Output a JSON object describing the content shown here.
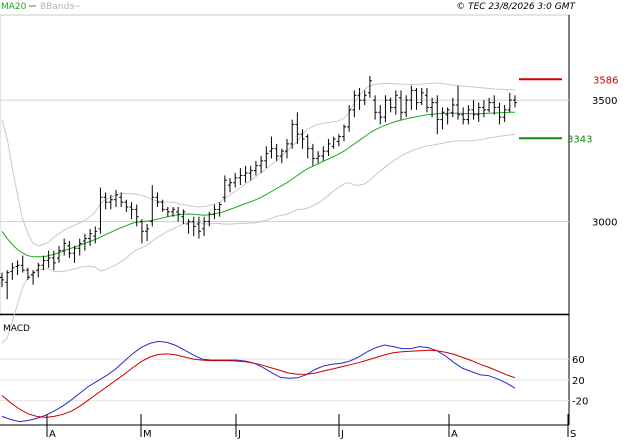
{
  "header": {
    "legend_ma": "MA20",
    "legend_bands": "BBands",
    "copyright": "© TEC 23/8/2026 3:0 GMT"
  },
  "macd_panel": {
    "label": "MACD"
  },
  "colors": {
    "ma": "#1aa81a",
    "bands": "#c8c8c8",
    "bars": "#000000",
    "resistance": "#cc0000",
    "support": "#118811",
    "macd": "#2a2acc",
    "signal": "#cc0000",
    "grid": "#cfcfcf",
    "frame": "#000000"
  },
  "chart_data": [
    {
      "type": "ohlc",
      "y_ticks": [
        3000,
        3500
      ],
      "y_tick_labels": [
        "3000",
        "3500"
      ],
      "ylim": [
        2640,
        3830
      ],
      "x_tick_labels": [
        "A",
        "M",
        "J",
        "J",
        "A",
        "S"
      ],
      "legend": [
        "MA20",
        "BBands"
      ],
      "levels": [
        {
          "name": "resistance",
          "value": 3586,
          "label": "3586"
        },
        {
          "name": "support",
          "value": 3343,
          "label": "3343"
        }
      ],
      "ohlc": [
        [
          2770,
          2790,
          2730,
          2760
        ],
        [
          2750,
          2800,
          2680,
          2790
        ],
        [
          2795,
          2830,
          2760,
          2810
        ],
        [
          2815,
          2840,
          2780,
          2820
        ],
        [
          2820,
          2860,
          2790,
          2800
        ],
        [
          2800,
          2810,
          2760,
          2770
        ],
        [
          2780,
          2800,
          2740,
          2790
        ],
        [
          2800,
          2830,
          2770,
          2820
        ],
        [
          2820,
          2860,
          2800,
          2840
        ],
        [
          2840,
          2880,
          2810,
          2850
        ],
        [
          2850,
          2880,
          2800,
          2830
        ],
        [
          2850,
          2900,
          2830,
          2880
        ],
        [
          2880,
          2930,
          2860,
          2910
        ],
        [
          2900,
          2920,
          2850,
          2870
        ],
        [
          2870,
          2900,
          2830,
          2890
        ],
        [
          2890,
          2930,
          2860,
          2910
        ],
        [
          2920,
          2950,
          2880,
          2930
        ],
        [
          2930,
          2970,
          2900,
          2950
        ],
        [
          2940,
          2980,
          2910,
          2960
        ],
        [
          2970,
          3140,
          2950,
          3100
        ],
        [
          3100,
          3120,
          3050,
          3080
        ],
        [
          3080,
          3110,
          3050,
          3090
        ],
        [
          3090,
          3130,
          3060,
          3110
        ],
        [
          3100,
          3120,
          3060,
          3080
        ],
        [
          3080,
          3090,
          3040,
          3060
        ],
        [
          3060,
          3080,
          3010,
          3050
        ],
        [
          3050,
          3070,
          2980,
          3020
        ],
        [
          3000,
          3010,
          2910,
          2960
        ],
        [
          2960,
          2990,
          2920,
          2970
        ],
        [
          3000,
          3150,
          2980,
          3100
        ],
        [
          3100,
          3120,
          3060,
          3080
        ],
        [
          3080,
          3090,
          3040,
          3050
        ],
        [
          3050,
          3060,
          3020,
          3040
        ],
        [
          3040,
          3060,
          3020,
          3050
        ],
        [
          3040,
          3060,
          3000,
          3030
        ],
        [
          3020,
          3050,
          2990,
          3040
        ],
        [
          2990,
          3010,
          2950,
          3000
        ],
        [
          3000,
          3020,
          2940,
          2980
        ],
        [
          2990,
          3020,
          2930,
          2960
        ],
        [
          2970,
          3020,
          2940,
          3000
        ],
        [
          3000,
          3040,
          2980,
          3030
        ],
        [
          3030,
          3070,
          3010,
          3050
        ],
        [
          3050,
          3080,
          3020,
          3070
        ],
        [
          3100,
          3190,
          3080,
          3170
        ],
        [
          3150,
          3180,
          3120,
          3160
        ],
        [
          3160,
          3200,
          3140,
          3180
        ],
        [
          3180,
          3220,
          3150,
          3190
        ],
        [
          3190,
          3230,
          3160,
          3200
        ],
        [
          3200,
          3230,
          3170,
          3210
        ],
        [
          3210,
          3250,
          3190,
          3230
        ],
        [
          3230,
          3270,
          3200,
          3250
        ],
        [
          3250,
          3310,
          3220,
          3280
        ],
        [
          3290,
          3350,
          3260,
          3300
        ],
        [
          3300,
          3320,
          3250,
          3270
        ],
        [
          3270,
          3300,
          3240,
          3290
        ],
        [
          3290,
          3340,
          3260,
          3320
        ],
        [
          3320,
          3420,
          3300,
          3400
        ],
        [
          3400,
          3450,
          3320,
          3360
        ],
        [
          3360,
          3380,
          3300,
          3340
        ],
        [
          3350,
          3360,
          3260,
          3300
        ],
        [
          3300,
          3320,
          3230,
          3260
        ],
        [
          3260,
          3290,
          3240,
          3270
        ],
        [
          3270,
          3310,
          3250,
          3290
        ],
        [
          3290,
          3340,
          3270,
          3320
        ],
        [
          3310,
          3350,
          3300,
          3340
        ],
        [
          3330,
          3360,
          3310,
          3350
        ],
        [
          3350,
          3400,
          3330,
          3390
        ],
        [
          3390,
          3480,
          3370,
          3460
        ],
        [
          3460,
          3540,
          3430,
          3520
        ],
        [
          3520,
          3550,
          3460,
          3500
        ],
        [
          3500,
          3540,
          3480,
          3520
        ],
        [
          3530,
          3600,
          3510,
          3580
        ],
        [
          3500,
          3520,
          3420,
          3450
        ],
        [
          3450,
          3480,
          3400,
          3430
        ],
        [
          3430,
          3520,
          3410,
          3500
        ],
        [
          3500,
          3510,
          3450,
          3470
        ],
        [
          3470,
          3540,
          3440,
          3520
        ],
        [
          3510,
          3540,
          3420,
          3450
        ],
        [
          3450,
          3520,
          3430,
          3500
        ],
        [
          3500,
          3560,
          3460,
          3540
        ],
        [
          3540,
          3550,
          3460,
          3490
        ],
        [
          3490,
          3550,
          3480,
          3530
        ],
        [
          3520,
          3550,
          3450,
          3470
        ],
        [
          3470,
          3510,
          3430,
          3490
        ],
        [
          3490,
          3520,
          3360,
          3420
        ],
        [
          3420,
          3470,
          3380,
          3450
        ],
        [
          3440,
          3470,
          3400,
          3460
        ],
        [
          3450,
          3510,
          3430,
          3480
        ],
        [
          3480,
          3560,
          3420,
          3440
        ],
        [
          3440,
          3470,
          3400,
          3420
        ],
        [
          3420,
          3480,
          3400,
          3460
        ],
        [
          3460,
          3500,
          3420,
          3440
        ],
        [
          3440,
          3490,
          3410,
          3470
        ],
        [
          3470,
          3500,
          3430,
          3460
        ],
        [
          3460,
          3510,
          3450,
          3490
        ],
        [
          3490,
          3520,
          3440,
          3470
        ],
        [
          3470,
          3490,
          3400,
          3430
        ],
        [
          3430,
          3480,
          3410,
          3460
        ],
        [
          3460,
          3530,
          3450,
          3500
        ],
        [
          3500,
          3520,
          3470,
          3490
        ]
      ],
      "ma20": [
        2960,
        2930,
        2905,
        2885,
        2870,
        2860,
        2855,
        2855,
        2855,
        2860,
        2865,
        2872,
        2880,
        2888,
        2895,
        2903,
        2910,
        2918,
        2926,
        2936,
        2946,
        2956,
        2966,
        2975,
        2983,
        2992,
        2998,
        3000,
        3002,
        3005,
        3010,
        3015,
        3020,
        3025,
        3028,
        3030,
        3031,
        3030,
        3028,
        3026,
        3028,
        3032,
        3036,
        3042,
        3050,
        3058,
        3066,
        3074,
        3082,
        3090,
        3100,
        3112,
        3124,
        3136,
        3148,
        3160,
        3175,
        3190,
        3205,
        3218,
        3228,
        3238,
        3248,
        3258,
        3268,
        3278,
        3290,
        3305,
        3320,
        3335,
        3350,
        3365,
        3378,
        3388,
        3397,
        3405,
        3412,
        3418,
        3423,
        3428,
        3432,
        3436,
        3440,
        3442,
        3444,
        3445,
        3446,
        3446,
        3446,
        3445,
        3444,
        3444,
        3444,
        3445,
        3446,
        3447,
        3448,
        3449,
        3450,
        3450
      ],
      "bb_upper": [
        3420,
        3340,
        3220,
        3110,
        3010,
        2950,
        2910,
        2900,
        2905,
        2915,
        2935,
        2950,
        2965,
        2975,
        2985,
        2995,
        3005,
        3020,
        3040,
        3075,
        3090,
        3100,
        3110,
        3115,
        3115,
        3115,
        3112,
        3108,
        3100,
        3090,
        3085,
        3082,
        3080,
        3080,
        3075,
        3070,
        3066,
        3062,
        3060,
        3062,
        3066,
        3072,
        3080,
        3095,
        3110,
        3125,
        3140,
        3155,
        3170,
        3185,
        3200,
        3218,
        3235,
        3250,
        3270,
        3290,
        3310,
        3330,
        3360,
        3380,
        3392,
        3400,
        3405,
        3408,
        3410,
        3415,
        3425,
        3450,
        3490,
        3520,
        3545,
        3560,
        3565,
        3568,
        3568,
        3568,
        3568,
        3566,
        3565,
        3565,
        3565,
        3566,
        3568,
        3570,
        3570,
        3568,
        3565,
        3562,
        3560,
        3558,
        3556,
        3554,
        3552,
        3550,
        3548,
        3546,
        3545,
        3544,
        3543,
        3542
      ],
      "bb_lower": [
        2500,
        2520,
        2590,
        2660,
        2730,
        2770,
        2790,
        2800,
        2805,
        2805,
        2795,
        2794,
        2795,
        2801,
        2805,
        2811,
        2815,
        2816,
        2812,
        2797,
        2802,
        2812,
        2822,
        2835,
        2851,
        2869,
        2884,
        2892,
        2904,
        2920,
        2935,
        2948,
        2960,
        2970,
        2981,
        2990,
        2996,
        2998,
        2996,
        2990,
        2990,
        2992,
        2992,
        2989,
        2990,
        2991,
        2992,
        2993,
        2994,
        2995,
        3000,
        3006,
        3013,
        3022,
        3026,
        3030,
        3040,
        3050,
        3050,
        3056,
        3064,
        3076,
        3091,
        3108,
        3126,
        3141,
        3155,
        3160,
        3150,
        3150,
        3155,
        3170,
        3191,
        3208,
        3226,
        3242,
        3256,
        3270,
        3281,
        3291,
        3299,
        3306,
        3312,
        3314,
        3318,
        3322,
        3327,
        3330,
        3332,
        3332,
        3332,
        3334,
        3336,
        3340,
        3344,
        3348,
        3351,
        3354,
        3357,
        3358
      ]
    },
    {
      "type": "line",
      "title": "MACD",
      "y_ticks": [
        60,
        20,
        -20
      ],
      "y_tick_labels": [
        "60",
        "20",
        "-20"
      ],
      "ylim": [
        -57,
        135
      ],
      "series": [
        {
          "values": [
            -50,
            -56,
            -60,
            -58,
            -54,
            -48,
            -40,
            -30,
            -18,
            -5,
            8,
            18,
            28,
            40,
            55,
            70,
            82,
            90,
            94,
            92,
            86,
            77,
            68,
            60,
            58,
            58,
            58,
            58,
            56,
            52,
            44,
            34,
            25,
            23,
            24,
            30,
            40,
            47,
            50,
            52,
            56,
            64,
            74,
            82,
            87,
            84,
            80,
            80,
            84,
            82,
            76,
            66,
            53,
            42,
            36,
            30,
            28,
            22,
            14,
            4
          ]
        },
        {
          "values": [
            -10,
            -24,
            -36,
            -45,
            -50,
            -52,
            -50,
            -46,
            -40,
            -30,
            -18,
            -6,
            6,
            18,
            30,
            43,
            55,
            64,
            69,
            70,
            68,
            64,
            60,
            58,
            57,
            57,
            57,
            56,
            55,
            52,
            48,
            43,
            38,
            33,
            31,
            31,
            33,
            37,
            41,
            45,
            49,
            53,
            58,
            63,
            68,
            72,
            74,
            75,
            76,
            77,
            76,
            73,
            69,
            63,
            57,
            50,
            44,
            37,
            30,
            24
          ]
        }
      ]
    }
  ]
}
